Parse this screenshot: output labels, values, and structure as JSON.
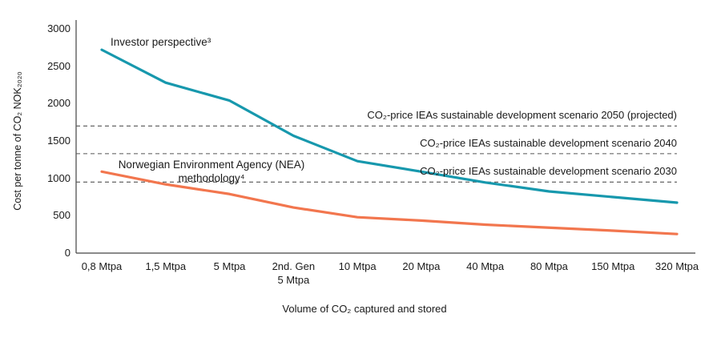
{
  "chart_data": {
    "type": "line",
    "title": "",
    "xlabel": "Volume of CO₂ captured and stored",
    "ylabel": "Cost per tonne of CO₂ NOK₂₀₂₀",
    "ylim": [
      0,
      3000
    ],
    "yticks": [
      0,
      500,
      1000,
      1500,
      2000,
      2500,
      3000
    ],
    "grid": false,
    "legend_position": "inline-annotations",
    "categories": [
      "0,8 Mtpa",
      "1,5 Mtpa",
      "5 Mtpa",
      "2nd. Gen\n5 Mtpa",
      "10 Mtpa",
      "20 Mtpa",
      "40 Mtpa",
      "80 Mtpa",
      "150 Mtpa",
      "320 Mtpa"
    ],
    "series": [
      {
        "name": "Investor perspective³",
        "color": "#1798ad",
        "values": [
          2720,
          2280,
          2040,
          1570,
          1230,
          1090,
          945,
          825,
          750,
          675
        ]
      },
      {
        "name": "Norwegian Environment Agency (NEA)\nmethodology⁴",
        "color": "#f2764e",
        "values": [
          1090,
          920,
          790,
          610,
          480,
          435,
          380,
          340,
          300,
          255
        ]
      }
    ],
    "reference_lines": [
      {
        "label": "CO₂-price IEAs sustainable development scenario 2050 (projected)",
        "value": 1700
      },
      {
        "label": "CO₂-price IEAs sustainable development scenario 2040",
        "value": 1330
      },
      {
        "label": "CO₂-price IEAs sustainable development scenario 2030",
        "value": 950
      }
    ],
    "axis_color": "#444444",
    "reference_line_color": "#555555"
  }
}
